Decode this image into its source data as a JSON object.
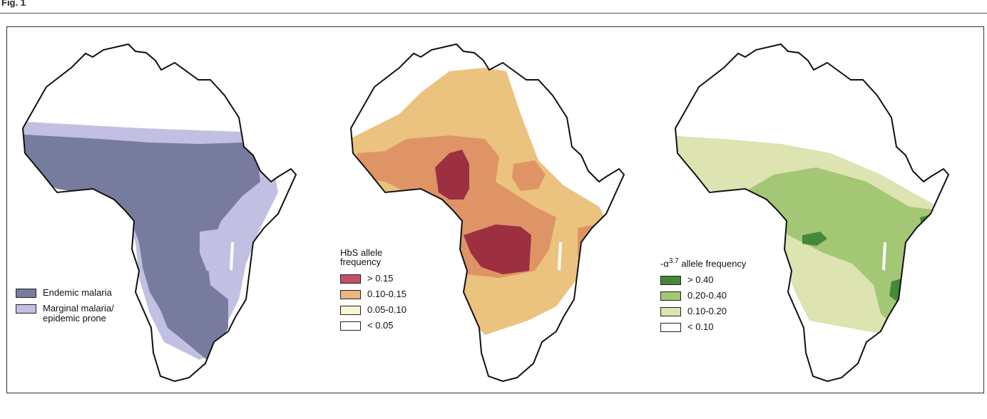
{
  "figure_label": "Fig. 1",
  "panels": [
    {
      "id": "malaria",
      "legend_title": "",
      "legend": [
        {
          "label": "Endemic malaria",
          "color": "#777c9e"
        },
        {
          "label": "Marginal malaria/ epidemic prone",
          "color": "#c2c0e2"
        }
      ]
    },
    {
      "id": "hbs",
      "legend_title": "HbS allele frequency",
      "legend": [
        {
          "label": "> 0.15",
          "color": "#c05168"
        },
        {
          "label": "0.10-0.15",
          "color": "#edb57f"
        },
        {
          "label": "0.05-0.10",
          "color": "#fbf7d5"
        },
        {
          "label": "< 0.05",
          "color": "#ffffff"
        }
      ],
      "region_colors": {
        "dark": "#9c3040",
        "mid": "#df9466",
        "light": "#ebc27e"
      }
    },
    {
      "id": "alpha",
      "legend_title_prefix": "-α",
      "legend_title_sup": "3.7",
      "legend_title_suffix": " allele frequency",
      "legend": [
        {
          "label": "> 0.40",
          "color": "#45883a"
        },
        {
          "label": "0.20-0.40",
          "color": "#a3c774"
        },
        {
          "label": "0.10-0.20",
          "color": "#dde3b1"
        },
        {
          "label": "< 0.10",
          "color": "#ffffff"
        }
      ]
    }
  ]
}
